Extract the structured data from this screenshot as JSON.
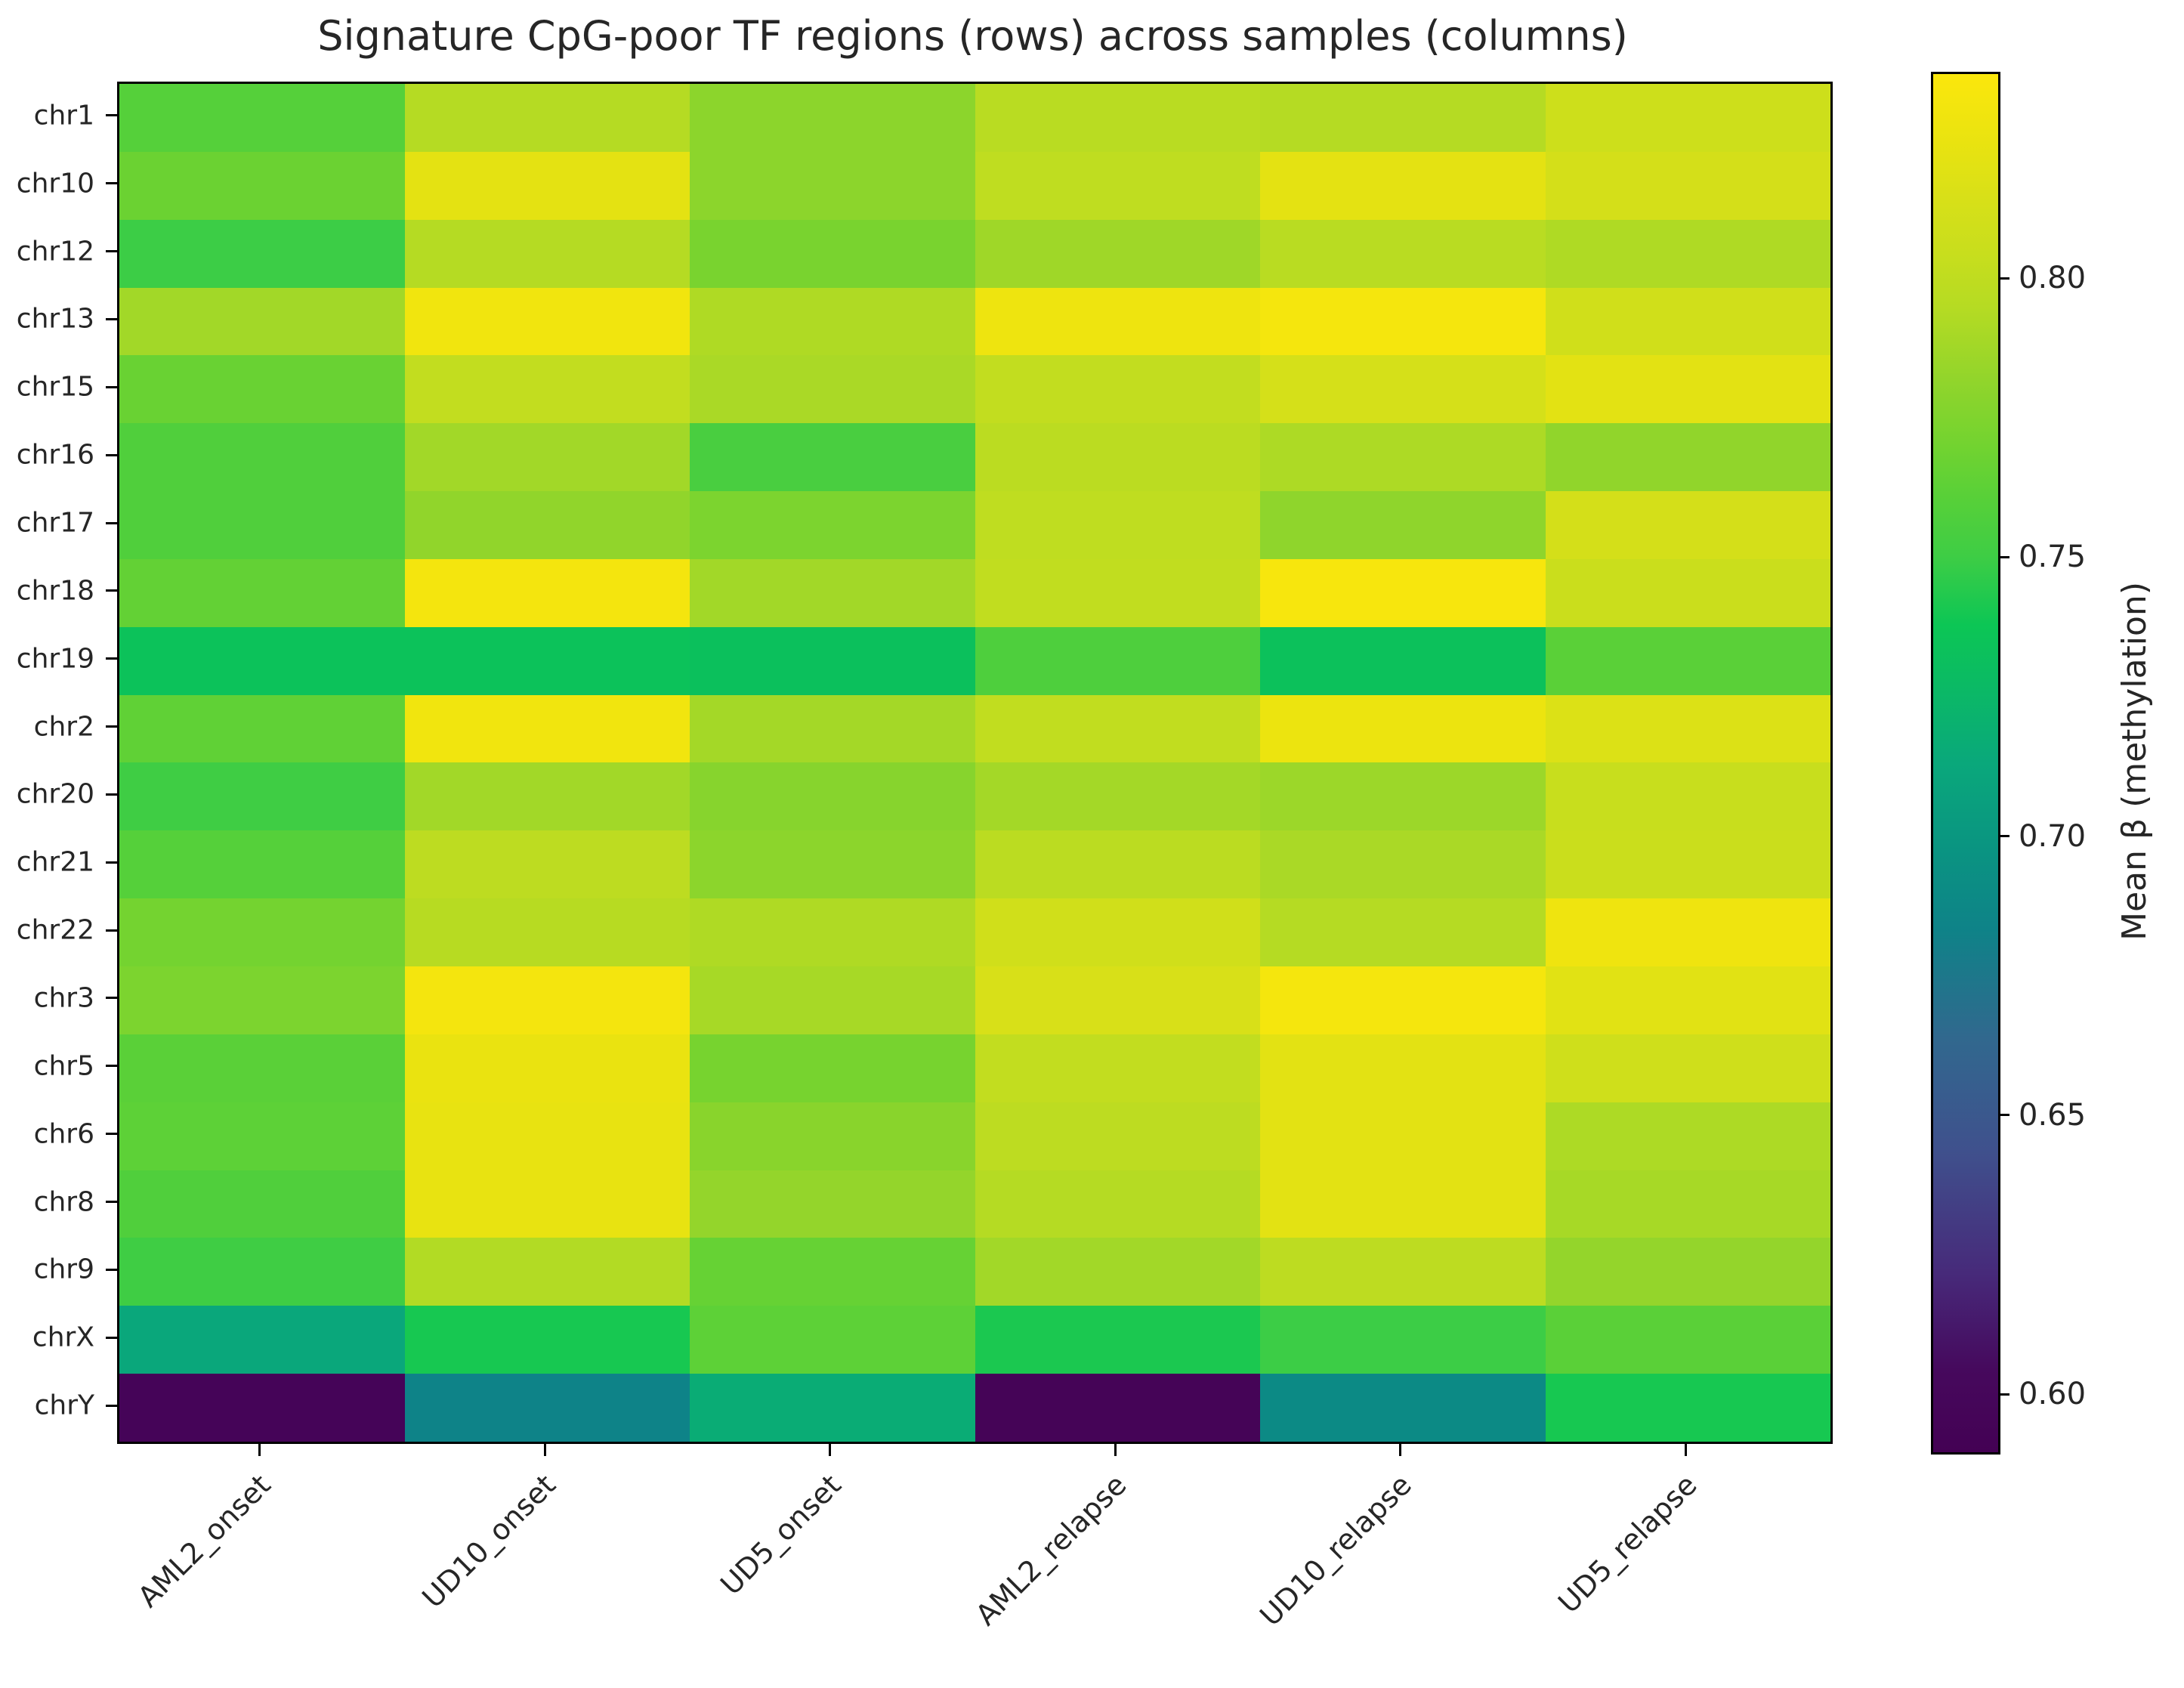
{
  "title": "Signature CpG-poor TF regions (rows) across samples (columns)",
  "colorbar": {
    "label": "Mean β (methylation)",
    "tick_labels": [
      "0.80",
      "0.75",
      "0.70",
      "0.65",
      "0.60"
    ],
    "tick_values": [
      0.8,
      0.75,
      0.7,
      0.65,
      0.6
    ]
  },
  "chart_data": {
    "type": "heatmap",
    "title": "Signature CpG-poor TF regions (rows) across samples (columns)",
    "rows": [
      "chr1",
      "chr10",
      "chr12",
      "chr13",
      "chr15",
      "chr16",
      "chr17",
      "chr18",
      "chr19",
      "chr2",
      "chr20",
      "chr21",
      "chr22",
      "chr3",
      "chr5",
      "chr6",
      "chr8",
      "chr9",
      "chrX",
      "chrY"
    ],
    "columns": [
      "AML2_onset",
      "UD10_onset",
      "UD5_onset",
      "AML2_relapse",
      "UD10_relapse",
      "UD5_relapse"
    ],
    "values": [
      [
        0.76,
        0.795,
        0.78,
        0.797,
        0.795,
        0.808
      ],
      [
        0.768,
        0.822,
        0.78,
        0.8,
        0.822,
        0.812
      ],
      [
        0.75,
        0.795,
        0.773,
        0.787,
        0.797,
        0.793
      ],
      [
        0.788,
        0.83,
        0.793,
        0.828,
        0.833,
        0.81
      ],
      [
        0.767,
        0.802,
        0.791,
        0.802,
        0.813,
        0.821
      ],
      [
        0.758,
        0.788,
        0.755,
        0.798,
        0.792,
        0.782
      ],
      [
        0.758,
        0.782,
        0.774,
        0.8,
        0.781,
        0.812
      ],
      [
        0.765,
        0.832,
        0.788,
        0.801,
        0.834,
        0.806
      ],
      [
        0.735,
        0.735,
        0.733,
        0.757,
        0.734,
        0.762
      ],
      [
        0.764,
        0.83,
        0.789,
        0.801,
        0.827,
        0.817
      ],
      [
        0.751,
        0.788,
        0.778,
        0.789,
        0.786,
        0.805
      ],
      [
        0.76,
        0.799,
        0.78,
        0.798,
        0.791,
        0.806
      ],
      [
        0.771,
        0.796,
        0.793,
        0.81,
        0.795,
        0.829
      ],
      [
        0.774,
        0.832,
        0.79,
        0.815,
        0.833,
        0.82
      ],
      [
        0.762,
        0.825,
        0.772,
        0.802,
        0.821,
        0.809
      ],
      [
        0.763,
        0.824,
        0.779,
        0.799,
        0.821,
        0.792
      ],
      [
        0.758,
        0.824,
        0.783,
        0.795,
        0.821,
        0.79
      ],
      [
        0.751,
        0.794,
        0.766,
        0.788,
        0.799,
        0.783
      ],
      [
        0.713,
        0.741,
        0.763,
        0.742,
        0.75,
        0.762
      ],
      [
        0.596,
        0.684,
        0.717,
        0.595,
        0.69,
        0.741
      ]
    ],
    "colormap": "viridis",
    "colormap_anchors": [
      [
        0.0,
        "#440154"
      ],
      [
        0.06,
        "#46095d"
      ],
      [
        0.13,
        "#472a7a"
      ],
      [
        0.22,
        "#3f518d"
      ],
      [
        0.3,
        "#31688e"
      ],
      [
        0.38,
        "#0e8388"
      ],
      [
        0.44,
        "#0a9581"
      ],
      [
        0.5,
        "#0aa87b"
      ],
      [
        0.56,
        "#0bbb63"
      ],
      [
        0.6,
        "#0cc655"
      ],
      [
        0.65,
        "#3ecd45"
      ],
      [
        0.69,
        "#56d039"
      ],
      [
        0.73,
        "#72d330"
      ],
      [
        0.78,
        "#93d52b"
      ],
      [
        0.83,
        "#b5db23"
      ],
      [
        0.87,
        "#c8de1d"
      ],
      [
        0.91,
        "#d8e018"
      ],
      [
        0.95,
        "#e9e310"
      ],
      [
        1.0,
        "#fbe70c"
      ]
    ],
    "vmin": 0.59,
    "vmax": 0.837,
    "colorbar_label": "Mean β (methylation)",
    "colorbar_ticks": [
      0.8,
      0.75,
      0.7,
      0.65,
      0.6
    ],
    "x_tick_rotation_deg": 45,
    "grid": false,
    "legend_position": "right-colorbar"
  }
}
